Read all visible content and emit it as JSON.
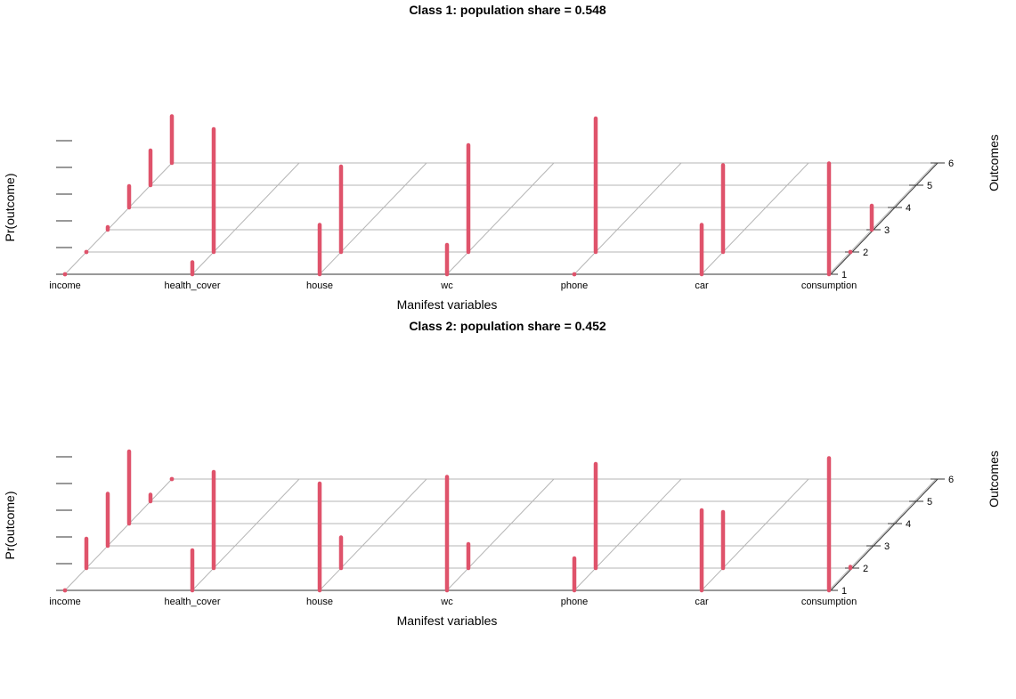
{
  "chart_data": [
    {
      "type": "bar3d",
      "title": "Class 1: population share = 0.548",
      "xlabel": "Manifest variables",
      "ylabel": "Pr(outcome)",
      "zlabel": "Outcomes",
      "variables": [
        "income",
        "health_cover",
        "house",
        "wc",
        "phone",
        "car",
        "consumption"
      ],
      "outcomes": [
        "1",
        "2",
        "3",
        "4",
        "5",
        "6"
      ],
      "ylim": [
        0,
        1
      ],
      "color": "#DF536B",
      "values": [
        [
          0.0,
          0.0,
          0.02,
          0.16,
          0.26,
          0.35
        ],
        [
          0.09,
          0.92,
          null,
          null,
          null,
          null
        ],
        [
          0.37,
          0.64,
          null,
          null,
          null,
          null
        ],
        [
          0.22,
          0.8,
          null,
          null,
          null,
          null
        ],
        [
          0.0,
          1.0,
          null,
          null,
          null,
          null
        ],
        [
          0.37,
          0.65,
          null,
          null,
          null,
          null
        ],
        [
          0.83,
          0.0,
          0.18,
          null,
          null,
          null
        ]
      ]
    },
    {
      "type": "bar3d",
      "title": "Class 2: population share = 0.452",
      "xlabel": "Manifest variables",
      "ylabel": "Pr(outcome)",
      "zlabel": "Outcomes",
      "variables": [
        "income",
        "health_cover",
        "house",
        "wc",
        "phone",
        "car",
        "consumption"
      ],
      "outcomes": [
        "1",
        "2",
        "3",
        "4",
        "5",
        "6"
      ],
      "ylim": [
        0,
        1
      ],
      "color": "#DF536B",
      "values": [
        [
          0.0,
          0.22,
          0.39,
          0.54,
          0.05,
          0.0
        ],
        [
          0.3,
          0.72,
          null,
          null,
          null,
          null
        ],
        [
          0.8,
          0.23,
          null,
          null,
          null,
          null
        ],
        [
          0.85,
          0.18,
          null,
          null,
          null,
          null
        ],
        [
          0.24,
          0.78,
          null,
          null,
          null,
          null
        ],
        [
          0.6,
          0.42,
          null,
          null,
          null,
          null
        ],
        [
          0.99,
          0.01,
          null,
          null,
          null,
          null
        ]
      ]
    }
  ]
}
